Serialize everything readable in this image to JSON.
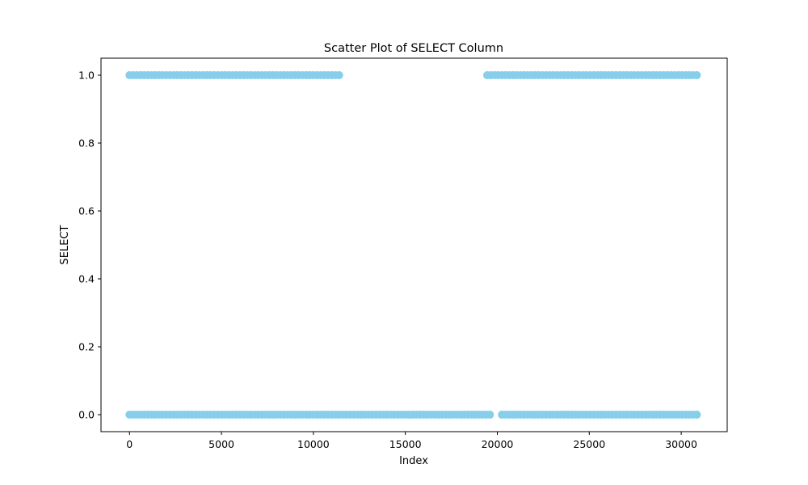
{
  "chart_data": {
    "type": "scatter",
    "title": "Scatter Plot of SELECT Column",
    "xlabel": "Index",
    "ylabel": "SELECT",
    "xlim": [
      -1550,
      32500
    ],
    "ylim": [
      -0.05,
      1.05
    ],
    "x_ticks": [
      0,
      5000,
      10000,
      15000,
      20000,
      25000,
      30000
    ],
    "x_tick_labels": [
      "0",
      "5000",
      "10000",
      "15000",
      "20000",
      "25000",
      "30000"
    ],
    "y_ticks": [
      0.0,
      0.2,
      0.4,
      0.6,
      0.8,
      1.0
    ],
    "y_tick_labels": [
      "0.0",
      "0.2",
      "0.4",
      "0.6",
      "0.8",
      "1.0"
    ],
    "grid": false,
    "marker_color": "#87CEEB",
    "series": [
      {
        "points_by_range": [
          {
            "y": 1,
            "x_start": 0,
            "x_end": 11500
          },
          {
            "y": 1,
            "x_start": 19450,
            "x_end": 31000
          },
          {
            "y": 0,
            "x_start": 0,
            "x_end": 19600
          },
          {
            "y": 0,
            "x_start": 20250,
            "x_end": 31000
          }
        ]
      }
    ]
  }
}
